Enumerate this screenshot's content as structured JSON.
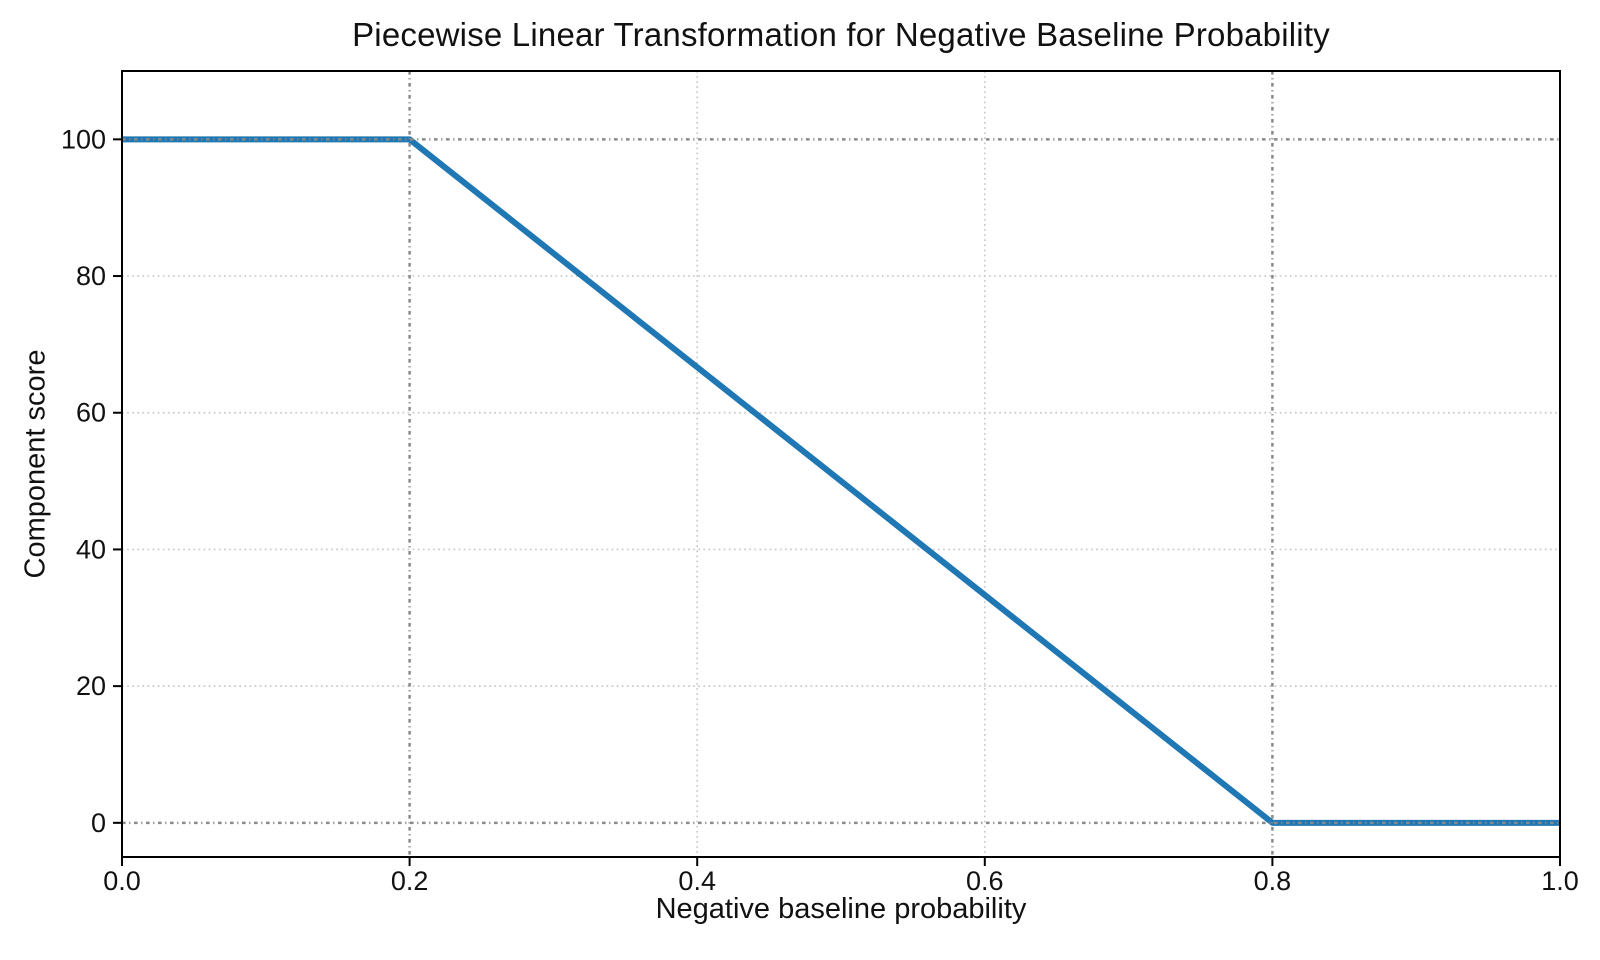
{
  "chart_data": {
    "type": "line",
    "title": "Piecewise Linear Transformation for Negative Baseline Probability",
    "xlabel": "Negative baseline probability",
    "ylabel": "Component score",
    "series": [
      {
        "name": "component-score-transform",
        "x": [
          0.0,
          0.2,
          0.8,
          1.0
        ],
        "y": [
          100,
          100,
          0,
          0
        ]
      }
    ],
    "xlim": [
      0.0,
      1.0
    ],
    "ylim": [
      -5,
      110
    ],
    "xticks": [
      0.0,
      0.2,
      0.4,
      0.6,
      0.8,
      1.0
    ],
    "xtick_labels": [
      "0.0",
      "0.2",
      "0.4",
      "0.6",
      "0.8",
      "1.0"
    ],
    "yticks": [
      0,
      20,
      40,
      60,
      80,
      100
    ],
    "ytick_labels": [
      "0",
      "20",
      "40",
      "60",
      "80",
      "100"
    ],
    "grid": true,
    "legend": "none",
    "emphasis_gridlines": {
      "x": [
        0.2,
        0.8
      ],
      "y": [
        0,
        100
      ]
    },
    "colors": {
      "line": "#1f77b4",
      "grid": "#c9c9c9",
      "emphasis_grid": "#8a8a8a",
      "spine": "#000000",
      "text": "#111111",
      "background": "#ffffff"
    }
  }
}
